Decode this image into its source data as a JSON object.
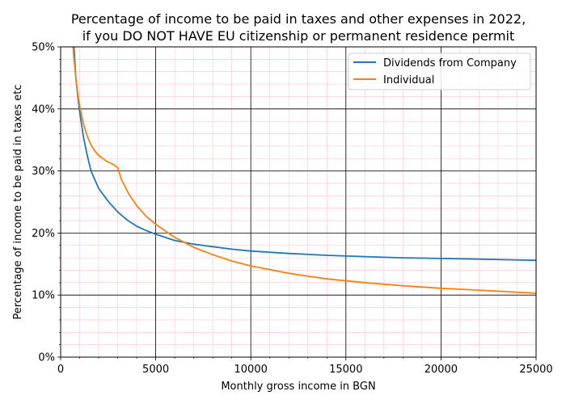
{
  "chart_data": {
    "type": "line",
    "title_line1": "Percentage of income to be paid in taxes and other expenses in 2022,",
    "title_line2": "if you DO NOT HAVE EU citizenship or permanent residence permit",
    "xlabel": "Monthly gross income in BGN",
    "ylabel": "Percentage of income to be paid in taxes etc",
    "xlim": [
      0,
      25000
    ],
    "ylim": [
      0,
      50
    ],
    "x_ticks": [
      0,
      5000,
      10000,
      15000,
      20000,
      25000
    ],
    "x_tick_labels": [
      "0",
      "5000",
      "10000",
      "15000",
      "20000",
      "25000"
    ],
    "y_ticks": [
      0,
      10,
      20,
      30,
      40,
      50
    ],
    "y_tick_labels": [
      "0%",
      "10%",
      "20%",
      "30%",
      "40%",
      "50%"
    ],
    "x_minor_step": 1000,
    "y_minor_step": 2,
    "grid": true,
    "legend_position": "upper right",
    "series": [
      {
        "name": "Dividends from Company",
        "color": "#1f77b4",
        "x": [
          700,
          800,
          900,
          1000,
          1200,
          1400,
          1600,
          1800,
          2000,
          2500,
          3000,
          3500,
          4000,
          4500,
          5000,
          6000,
          7000,
          8000,
          9000,
          10000,
          12000,
          14000,
          16000,
          18000,
          20000,
          22000,
          25000
        ],
        "y": [
          50.0,
          45.0,
          42.0,
          39.5,
          35.5,
          32.5,
          30.0,
          28.6,
          27.2,
          25.1,
          23.4,
          22.1,
          21.1,
          20.4,
          19.8,
          18.8,
          18.2,
          17.8,
          17.4,
          17.1,
          16.7,
          16.4,
          16.2,
          16.0,
          15.9,
          15.8,
          15.6
        ]
      },
      {
        "name": "Individual",
        "color": "#ff7f0e",
        "x": [
          650,
          700,
          800,
          900,
          1000,
          1200,
          1400,
          1600,
          1800,
          2000,
          2400,
          2800,
          3000,
          3200,
          3600,
          4000,
          4500,
          5000,
          6000,
          7000,
          8000,
          9000,
          10000,
          12000,
          14000,
          16000,
          18000,
          20000,
          22000,
          25000
        ],
        "y": [
          50.0,
          48.0,
          45.0,
          42.5,
          40.5,
          37.6,
          35.6,
          34.2,
          33.2,
          32.5,
          31.6,
          31.0,
          30.5,
          28.6,
          26.2,
          24.4,
          22.7,
          21.4,
          19.3,
          17.7,
          16.5,
          15.5,
          14.7,
          13.5,
          12.6,
          12.0,
          11.5,
          11.1,
          10.8,
          10.3
        ]
      }
    ]
  }
}
